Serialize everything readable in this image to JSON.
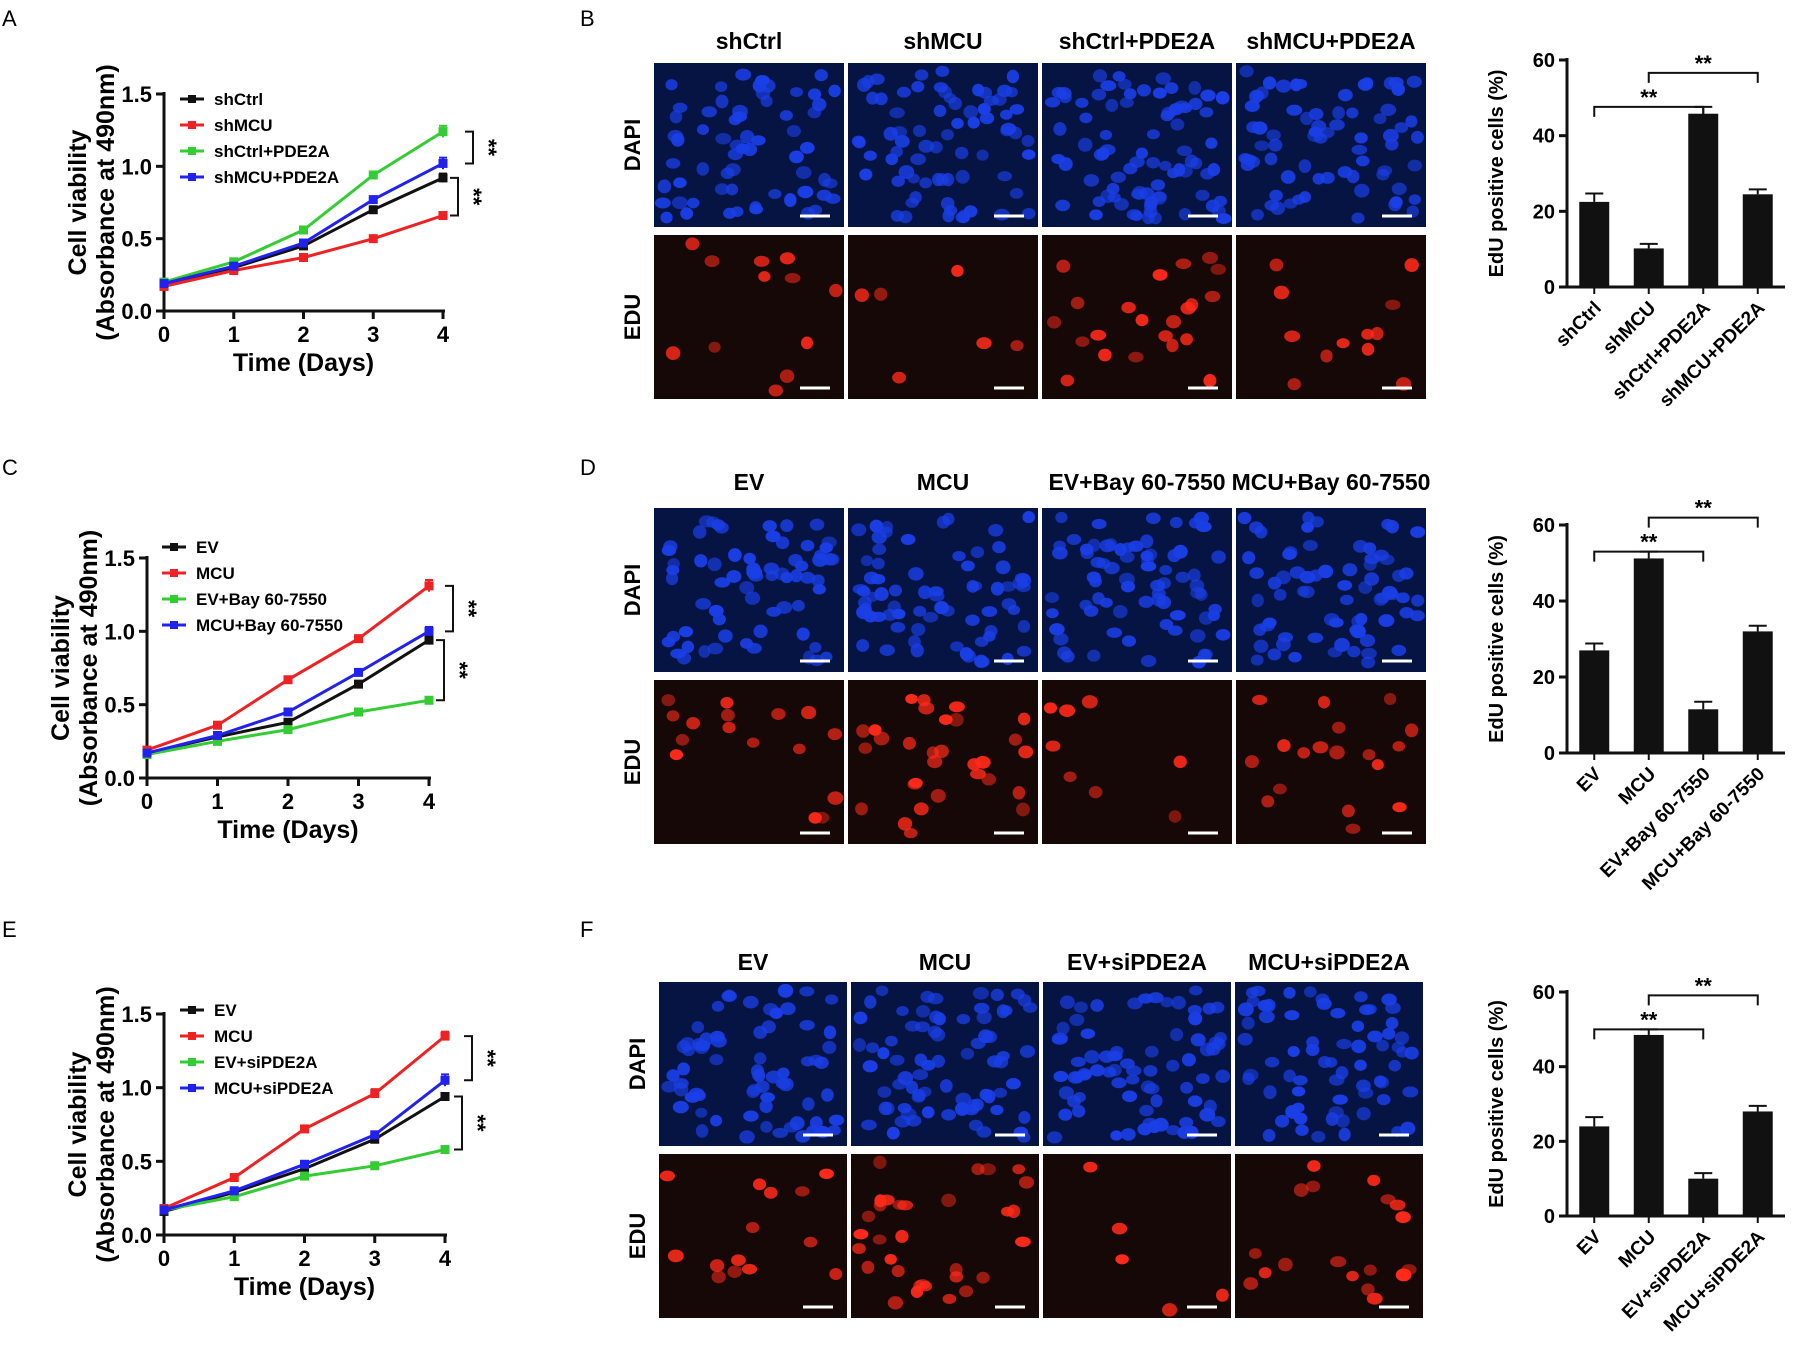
{
  "panel_letters": [
    "A",
    "B",
    "C",
    "D",
    "E",
    "F"
  ],
  "micro_row_labels": [
    "DAPI",
    "EDU"
  ],
  "colors": {
    "black": "#111111",
    "red": "#ee2222",
    "green": "#33cc33",
    "blue": "#2222ee",
    "dapi": "#1a3fe6",
    "edu": "#ff2a1a"
  },
  "chart_data": [
    {
      "id": "A",
      "type": "line",
      "xlabel": "Time (Days)",
      "ylabel": [
        "Cell viability",
        "(Absorbance at 490nm)"
      ],
      "x": [
        0,
        1,
        2,
        3,
        4
      ],
      "xlim": [
        0,
        4
      ],
      "ylim": [
        0,
        1.5
      ],
      "xticks": [
        "0",
        "1",
        "2",
        "3",
        "4"
      ],
      "yticks": [
        "0.0",
        "0.5",
        "1.0",
        "1.5"
      ],
      "series": [
        {
          "name": "shCtrl",
          "color": "#111111",
          "values": [
            0.19,
            0.3,
            0.45,
            0.7,
            0.92
          ],
          "err": [
            0.01,
            0.01,
            0.01,
            0.015,
            0.03
          ]
        },
        {
          "name": "shMCU",
          "color": "#ee2222",
          "values": [
            0.17,
            0.28,
            0.37,
            0.5,
            0.66
          ],
          "err": [
            0.01,
            0.01,
            0.01,
            0.02,
            0.02
          ]
        },
        {
          "name": "shCtrl+PDE2A",
          "color": "#33cc33",
          "values": [
            0.2,
            0.34,
            0.56,
            0.94,
            1.24
          ],
          "err": [
            0.01,
            0.01,
            0.02,
            0.015,
            0.04
          ]
        },
        {
          "name": "shMCU+PDE2A",
          "color": "#2222ee",
          "values": [
            0.19,
            0.31,
            0.47,
            0.77,
            1.02
          ],
          "err": [
            0.01,
            0.01,
            0.02,
            0.015,
            0.04
          ]
        }
      ],
      "significance": [
        "**",
        "**"
      ]
    },
    {
      "id": "B",
      "type": "bar",
      "ylabel": "EdU positive cells (%)",
      "categories": [
        "shCtrl",
        "shMCU",
        "shCtrl+PDE2A",
        "shMCU+PDE2A"
      ],
      "values": [
        22.5,
        10.2,
        45.8,
        24.5
      ],
      "err": [
        2.2,
        1.2,
        1.8,
        1.3
      ],
      "ylim": [
        0,
        60
      ],
      "yticks": [
        "0",
        "20",
        "40",
        "60"
      ],
      "significance": [
        "**",
        "**"
      ]
    },
    {
      "id": "C",
      "type": "line",
      "xlabel": "Time (Days)",
      "ylabel": [
        "Cell viability",
        "(Absorbance at 490nm)"
      ],
      "x": [
        0,
        1,
        2,
        3,
        4
      ],
      "xlim": [
        0,
        4
      ],
      "ylim": [
        0,
        1.5
      ],
      "xticks": [
        "0",
        "1",
        "2",
        "3",
        "4"
      ],
      "yticks": [
        "0.0",
        "0.5",
        "1.0",
        "1.5"
      ],
      "series": [
        {
          "name": "EV",
          "color": "#111111",
          "values": [
            0.17,
            0.28,
            0.38,
            0.64,
            0.94
          ],
          "err": [
            0.01,
            0.01,
            0.015,
            0.015,
            0.03
          ]
        },
        {
          "name": "MCU",
          "color": "#ee2222",
          "values": [
            0.19,
            0.36,
            0.67,
            0.95,
            1.31
          ],
          "err": [
            0.01,
            0.015,
            0.015,
            0.02,
            0.04
          ]
        },
        {
          "name": "EV+Bay 60-7550",
          "color": "#33cc33",
          "values": [
            0.16,
            0.25,
            0.33,
            0.45,
            0.53
          ],
          "err": [
            0.01,
            0.01,
            0.01,
            0.01,
            0.02
          ]
        },
        {
          "name": "MCU+Bay 60-7550",
          "color": "#2222ee",
          "values": [
            0.17,
            0.29,
            0.45,
            0.72,
            1.0
          ],
          "err": [
            0.01,
            0.01,
            0.02,
            0.02,
            0.03
          ]
        }
      ],
      "significance": [
        "**",
        "**"
      ]
    },
    {
      "id": "D",
      "type": "bar",
      "ylabel": "EdU positive cells (%)",
      "categories": [
        "EV",
        "MCU",
        "EV+Bay 60-7550",
        "MCU+Bay 60-7550"
      ],
      "values": [
        27.0,
        51.2,
        11.5,
        32.0
      ],
      "err": [
        1.8,
        1.8,
        2.0,
        1.5
      ],
      "ylim": [
        0,
        60
      ],
      "yticks": [
        "0",
        "20",
        "40",
        "60"
      ],
      "significance": [
        "**",
        "**"
      ]
    },
    {
      "id": "E",
      "type": "line",
      "xlabel": "Time (Days)",
      "ylabel": [
        "Cell viability",
        "(Absorbance at 490nm)"
      ],
      "x": [
        0,
        1,
        2,
        3,
        4
      ],
      "xlim": [
        0,
        4
      ],
      "ylim": [
        0,
        1.5
      ],
      "xticks": [
        "0",
        "1",
        "2",
        "3",
        "4"
      ],
      "yticks": [
        "0.0",
        "0.5",
        "1.0",
        "1.5"
      ],
      "series": [
        {
          "name": "EV",
          "color": "#111111",
          "values": [
            0.16,
            0.29,
            0.45,
            0.65,
            0.94
          ],
          "err": [
            0.01,
            0.01,
            0.015,
            0.015,
            0.02
          ]
        },
        {
          "name": "MCU",
          "color": "#ee2222",
          "values": [
            0.18,
            0.39,
            0.72,
            0.96,
            1.35
          ],
          "err": [
            0.01,
            0.015,
            0.02,
            0.03,
            0.03
          ]
        },
        {
          "name": "EV+siPDE2A",
          "color": "#33cc33",
          "values": [
            0.17,
            0.26,
            0.4,
            0.47,
            0.58
          ],
          "err": [
            0.01,
            0.01,
            0.01,
            0.01,
            0.015
          ]
        },
        {
          "name": "MCU+siPDE2A",
          "color": "#2222ee",
          "values": [
            0.17,
            0.3,
            0.48,
            0.68,
            1.05
          ],
          "err": [
            0.01,
            0.01,
            0.015,
            0.02,
            0.04
          ]
        }
      ],
      "significance": [
        "**",
        "**"
      ]
    },
    {
      "id": "F",
      "type": "bar",
      "ylabel": "EdU positive cells (%)",
      "categories": [
        "EV",
        "MCU",
        "EV+siPDE2A",
        "MCU+siPDE2A"
      ],
      "values": [
        24.0,
        48.5,
        10.0,
        28.0
      ],
      "err": [
        2.5,
        1.5,
        1.5,
        1.5
      ],
      "ylim": [
        0,
        60
      ],
      "yticks": [
        "0",
        "20",
        "40",
        "60"
      ],
      "significance": [
        "**",
        "**"
      ]
    }
  ],
  "micrographs": [
    {
      "id": "B",
      "columns": [
        "shCtrl",
        "shMCU",
        "shCtrl+PDE2A",
        "shMCU+PDE2A"
      ],
      "dapi_density": [
        62,
        72,
        80,
        70
      ],
      "edu_count": [
        12,
        6,
        22,
        12
      ]
    },
    {
      "id": "D",
      "columns": [
        "EV",
        "MCU",
        "EV+Bay 60-7550",
        "MCU+Bay 60-7550"
      ],
      "dapi_density": [
        66,
        70,
        72,
        70
      ],
      "edu_count": [
        16,
        30,
        8,
        18
      ]
    },
    {
      "id": "F",
      "columns": [
        "EV",
        "MCU",
        "EV+siPDE2A",
        "MCU+siPDE2A"
      ],
      "dapi_density": [
        68,
        74,
        74,
        70
      ],
      "edu_count": [
        14,
        32,
        5,
        18
      ]
    }
  ]
}
